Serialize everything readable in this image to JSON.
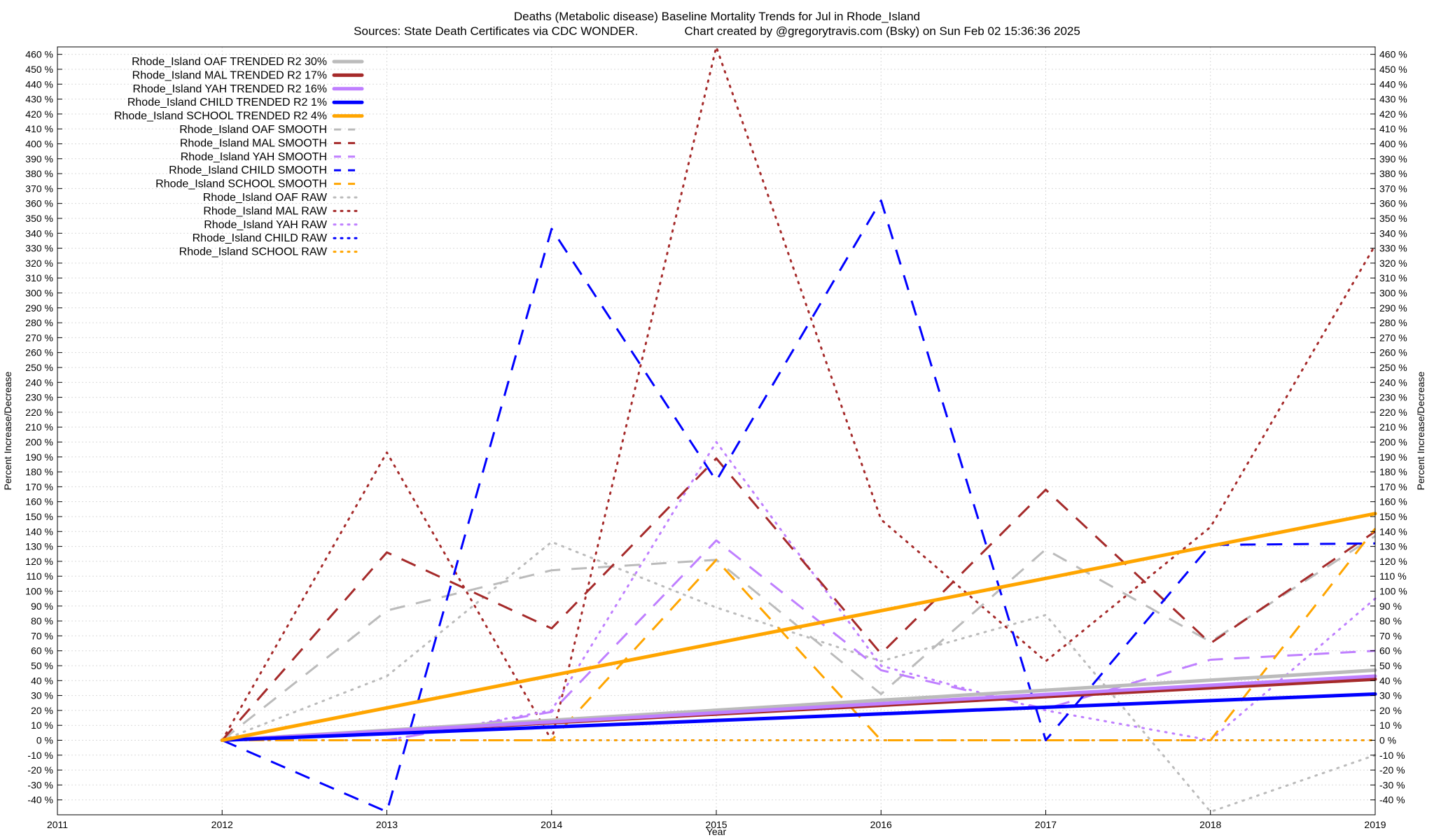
{
  "titles": {
    "line1": "Deaths (Metabolic disease)  Baseline Mortality Trends for Jul in Rhode_Island",
    "line2": "Sources: State Death Certificates via CDC WONDER.              Chart created by @gregorytravis.com (Bsky) on Sun Feb 02 15:36:36 2025"
  },
  "chart_data": {
    "type": "line",
    "title": "Deaths (Metabolic disease)  Baseline Mortality Trends for Jul in Rhode_Island",
    "subtitle": "Sources: State Death Certificates via CDC WONDER.              Chart created by @gregorytravis.com (Bsky) on Sun Feb 02 15:36:36 2025",
    "xlabel": "Year",
    "ylabel": "Percent Increase/Decrease",
    "y2label": "Percent Increase/Decrease",
    "xlim": [
      2011,
      2019
    ],
    "ylim": [
      -50,
      465
    ],
    "x_ticks": [
      2011,
      2012,
      2013,
      2014,
      2015,
      2016,
      2017,
      2018,
      2019
    ],
    "y_ticks": [
      -40,
      -30,
      -20,
      -10,
      0,
      10,
      20,
      30,
      40,
      50,
      60,
      70,
      80,
      90,
      100,
      110,
      120,
      130,
      140,
      150,
      160,
      170,
      180,
      190,
      200,
      210,
      220,
      230,
      240,
      250,
      260,
      270,
      280,
      290,
      300,
      310,
      320,
      330,
      340,
      350,
      360,
      370,
      380,
      390,
      400,
      410,
      420,
      430,
      440,
      450,
      460
    ],
    "y_tick_suffix": " %",
    "grid": true,
    "legend_position": "top-left",
    "series": [
      {
        "name": "Rhode_Island OAF TRENDED R2  30%",
        "style": "solid",
        "color": "#bbbbbb",
        "x": [
          2012,
          2019
        ],
        "y": [
          0,
          47
        ]
      },
      {
        "name": "Rhode_Island MAL TRENDED R2  17%",
        "style": "solid",
        "color": "#a52a2a",
        "x": [
          2012,
          2019
        ],
        "y": [
          0,
          41
        ]
      },
      {
        "name": "Rhode_Island YAH TRENDED R2  16%",
        "style": "solid",
        "color": "#bf7fff",
        "x": [
          2012,
          2019
        ],
        "y": [
          0,
          43
        ]
      },
      {
        "name": "Rhode_Island CHILD TRENDED R2   1%",
        "style": "solid",
        "color": "#0000ff",
        "x": [
          2012,
          2019
        ],
        "y": [
          0,
          31
        ]
      },
      {
        "name": "Rhode_Island SCHOOL TRENDED R2   4%",
        "style": "solid",
        "color": "#ffa500",
        "x": [
          2012,
          2019
        ],
        "y": [
          0,
          152
        ]
      },
      {
        "name": "Rhode_Island OAF SMOOTH",
        "style": "dashed",
        "color": "#bbbbbb",
        "x": [
          2012,
          2013,
          2014,
          2015,
          2016,
          2017,
          2018,
          2019
        ],
        "y": [
          0,
          87,
          114,
          121,
          31,
          128,
          66,
          137
        ]
      },
      {
        "name": "Rhode_Island MAL SMOOTH",
        "style": "dashed",
        "color": "#a52a2a",
        "x": [
          2012,
          2013,
          2014,
          2015,
          2016,
          2017,
          2018,
          2019
        ],
        "y": [
          0,
          126,
          75,
          189,
          58,
          168,
          65,
          140
        ]
      },
      {
        "name": "Rhode_Island YAH SMOOTH",
        "style": "dashed",
        "color": "#bf7fff",
        "x": [
          2012,
          2013,
          2014,
          2015,
          2016,
          2017,
          2018,
          2019
        ],
        "y": [
          0,
          0,
          19,
          134,
          47,
          21,
          54,
          60
        ]
      },
      {
        "name": "Rhode_Island CHILD SMOOTH",
        "style": "dashed",
        "color": "#0000ff",
        "x": [
          2012,
          2013,
          2014,
          2015,
          2016,
          2017,
          2018,
          2019
        ],
        "y": [
          0,
          -48,
          343,
          174,
          362,
          0,
          131,
          132
        ]
      },
      {
        "name": "Rhode_Island SCHOOL SMOOTH",
        "style": "dashed",
        "color": "#ffa500",
        "x": [
          2012,
          2013,
          2014,
          2015,
          2016,
          2017,
          2018,
          2019
        ],
        "y": [
          0,
          0,
          0,
          121,
          0,
          0,
          0,
          142
        ]
      },
      {
        "name": "Rhode_Island OAF RAW",
        "style": "dotted",
        "color": "#bbbbbb",
        "x": [
          2012,
          2013,
          2014,
          2015,
          2016,
          2017,
          2018,
          2019
        ],
        "y": [
          0,
          43,
          133,
          89,
          53,
          84,
          -48,
          -10
        ]
      },
      {
        "name": "Rhode_Island MAL RAW",
        "style": "dotted",
        "color": "#a52a2a",
        "x": [
          2012,
          2013,
          2014,
          2015,
          2016,
          2017,
          2018,
          2019
        ],
        "y": [
          0,
          193,
          0,
          465,
          148,
          53,
          143,
          332
        ]
      },
      {
        "name": "Rhode_Island YAH RAW",
        "style": "dotted",
        "color": "#bf7fff",
        "x": [
          2012,
          2013,
          2014,
          2015,
          2016,
          2017,
          2018,
          2019
        ],
        "y": [
          0,
          0,
          20,
          200,
          50,
          20,
          0,
          95
        ]
      },
      {
        "name": "Rhode_Island CHILD RAW",
        "style": "dotted",
        "color": "#0000ff",
        "x": [
          2012,
          2013,
          2014,
          2015,
          2016,
          2017,
          2018,
          2019
        ],
        "y": [
          0,
          0,
          0,
          0,
          0,
          0,
          0,
          0
        ]
      },
      {
        "name": "Rhode_Island SCHOOL RAW",
        "style": "dotted",
        "color": "#ffa500",
        "x": [
          2012,
          2013,
          2014,
          2015,
          2016,
          2017,
          2018,
          2019
        ],
        "y": [
          0,
          0,
          0,
          0,
          0,
          0,
          0,
          0
        ]
      }
    ]
  }
}
